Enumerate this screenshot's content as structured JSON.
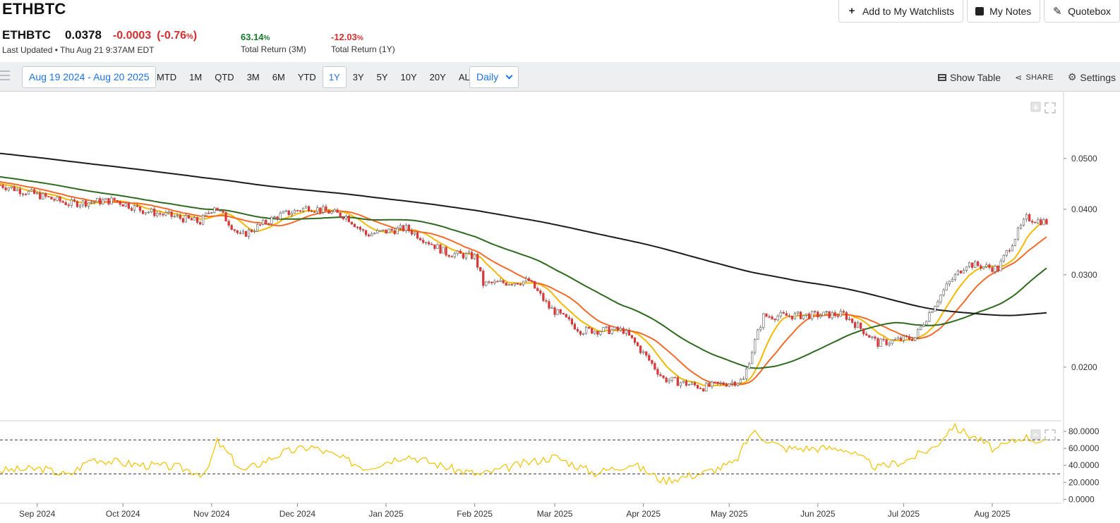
{
  "header": {
    "title": "ETHBTC",
    "buttons": [
      {
        "label": "Add to My Watchlists",
        "icon": "plus-icon"
      },
      {
        "label": "My Notes",
        "icon": "note-icon"
      },
      {
        "label": "Quotebox",
        "icon": "pencil-icon"
      }
    ]
  },
  "quote": {
    "symbol": "ETHBTC",
    "last": "0.0378",
    "change": "-0.0003",
    "change_pct": "(-0.76",
    "pct_sign": "%",
    "pct_close": ")",
    "updated": "Last Updated • Thu Aug 21 9:37AM EDT",
    "returns": [
      {
        "value": "63.14",
        "unit": "%",
        "label": "Total Return (3M)"
      },
      {
        "value": "-12.03",
        "unit": "%",
        "label": "Total Return (1Y)"
      }
    ]
  },
  "toolbar": {
    "date_range": "Aug 19 2024 - Aug 20 2025",
    "periods": [
      "MTD",
      "1M",
      "QTD",
      "3M",
      "6M",
      "YTD",
      "1Y",
      "3Y",
      "5Y",
      "10Y",
      "20Y",
      "ALL"
    ],
    "active_period": "1Y",
    "interval": "Daily",
    "show_table": "Show Table",
    "share": "SHARE",
    "settings": "Settings"
  },
  "colors": {
    "up": "#ffffff",
    "down": "#d9383a",
    "candle_edge": "#555555",
    "ma_short": "#f5b800",
    "ma_mid": "#f26b2a",
    "ma_long": "#2e6b1e",
    "ma_200": "#1c1c1c",
    "rsi": "#f2c200",
    "accent": "#1a73e8"
  },
  "chart_data": {
    "type": "candlestick",
    "scale": "log",
    "y_ticks": [
      "0.0500",
      "0.0400",
      "0.0300",
      "0.0200"
    ],
    "y_tick_values": [
      0.05,
      0.04,
      0.03,
      0.02
    ],
    "ylim": [
      0.0158,
      0.065
    ],
    "x_labels": [
      "Sep 2024",
      "Oct 2024",
      "Nov 2024",
      "Dec 2024",
      "Jan 2025",
      "Feb 2025",
      "Mar 2025",
      "Apr 2025",
      "May 2025",
      "Jun 2025",
      "Jul 2025",
      "Aug 2025"
    ],
    "x_label_dates": [
      "2024-09-01",
      "2024-10-01",
      "2024-11-01",
      "2024-12-01",
      "2025-01-01",
      "2025-02-01",
      "2025-03-01",
      "2025-04-01",
      "2025-05-01",
      "2025-06-01",
      "2025-07-01",
      "2025-08-01"
    ],
    "date_range": [
      "2024-08-19",
      "2025-08-20"
    ],
    "close_anchors": [
      {
        "date": "2024-08-19",
        "close": 0.0445
      },
      {
        "date": "2024-09-12",
        "close": 0.041
      },
      {
        "date": "2024-09-28",
        "close": 0.0416
      },
      {
        "date": "2024-10-08",
        "close": 0.0398
      },
      {
        "date": "2024-10-28",
        "close": 0.0378
      },
      {
        "date": "2024-11-02",
        "close": 0.0406
      },
      {
        "date": "2024-11-11",
        "close": 0.0355
      },
      {
        "date": "2024-11-24",
        "close": 0.0388
      },
      {
        "date": "2024-12-05",
        "close": 0.0404
      },
      {
        "date": "2024-12-18",
        "close": 0.0388
      },
      {
        "date": "2024-12-25",
        "close": 0.0358
      },
      {
        "date": "2025-01-08",
        "close": 0.0368
      },
      {
        "date": "2025-01-22",
        "close": 0.033
      },
      {
        "date": "2025-02-01",
        "close": 0.0325
      },
      {
        "date": "2025-02-04",
        "close": 0.0288
      },
      {
        "date": "2025-02-20",
        "close": 0.0292
      },
      {
        "date": "2025-02-27",
        "close": 0.026
      },
      {
        "date": "2025-03-10",
        "close": 0.0235
      },
      {
        "date": "2025-03-25",
        "close": 0.0235
      },
      {
        "date": "2025-04-08",
        "close": 0.019
      },
      {
        "date": "2025-04-22",
        "close": 0.0183
      },
      {
        "date": "2025-05-06",
        "close": 0.0189
      },
      {
        "date": "2025-05-13",
        "close": 0.025
      },
      {
        "date": "2025-06-10",
        "close": 0.0252
      },
      {
        "date": "2025-06-22",
        "close": 0.0222
      },
      {
        "date": "2025-07-05",
        "close": 0.0228
      },
      {
        "date": "2025-07-17",
        "close": 0.029
      },
      {
        "date": "2025-07-23",
        "close": 0.0315
      },
      {
        "date": "2025-08-03",
        "close": 0.0308
      },
      {
        "date": "2025-08-13",
        "close": 0.0385
      },
      {
        "date": "2025-08-20",
        "close": 0.0378
      }
    ],
    "moving_averages": [
      {
        "period": 10,
        "color": "#f5b800"
      },
      {
        "period": 20,
        "color": "#f26b2a"
      },
      {
        "period": 50,
        "color": "#2e6b1e"
      },
      {
        "period": 200,
        "color": "#1c1c1c"
      }
    ],
    "indicator": {
      "type": "line",
      "y_ticks": [
        "80.0000",
        "60.0000",
        "40.0000",
        "20.0000",
        "0.0000"
      ],
      "y_tick_values": [
        80,
        60,
        40,
        20,
        0
      ],
      "ylim": [
        -3,
        90
      ],
      "reference_lines": [
        70,
        30
      ],
      "anchors": [
        {
          "date": "2024-08-19",
          "value": 34
        },
        {
          "date": "2024-09-03",
          "value": 36
        },
        {
          "date": "2024-09-12",
          "value": 28
        },
        {
          "date": "2024-09-20",
          "value": 48
        },
        {
          "date": "2024-10-05",
          "value": 41
        },
        {
          "date": "2024-10-20",
          "value": 38
        },
        {
          "date": "2024-10-30",
          "value": 29
        },
        {
          "date": "2024-11-03",
          "value": 68
        },
        {
          "date": "2024-11-12",
          "value": 33
        },
        {
          "date": "2024-11-26",
          "value": 55
        },
        {
          "date": "2024-12-06",
          "value": 62
        },
        {
          "date": "2024-12-25",
          "value": 37
        },
        {
          "date": "2025-01-08",
          "value": 52
        },
        {
          "date": "2025-01-25",
          "value": 35
        },
        {
          "date": "2025-02-03",
          "value": 29
        },
        {
          "date": "2025-02-18",
          "value": 42
        },
        {
          "date": "2025-03-01",
          "value": 50
        },
        {
          "date": "2025-03-15",
          "value": 31
        },
        {
          "date": "2025-03-28",
          "value": 42
        },
        {
          "date": "2025-04-08",
          "value": 22
        },
        {
          "date": "2025-04-22",
          "value": 31
        },
        {
          "date": "2025-05-03",
          "value": 43
        },
        {
          "date": "2025-05-09",
          "value": 80
        },
        {
          "date": "2025-05-20",
          "value": 60
        },
        {
          "date": "2025-06-10",
          "value": 60
        },
        {
          "date": "2025-06-22",
          "value": 37
        },
        {
          "date": "2025-07-02",
          "value": 46
        },
        {
          "date": "2025-07-12",
          "value": 62
        },
        {
          "date": "2025-07-18",
          "value": 86
        },
        {
          "date": "2025-07-27",
          "value": 71
        },
        {
          "date": "2025-08-02",
          "value": 58
        },
        {
          "date": "2025-08-12",
          "value": 74
        },
        {
          "date": "2025-08-20",
          "value": 66
        }
      ]
    }
  }
}
